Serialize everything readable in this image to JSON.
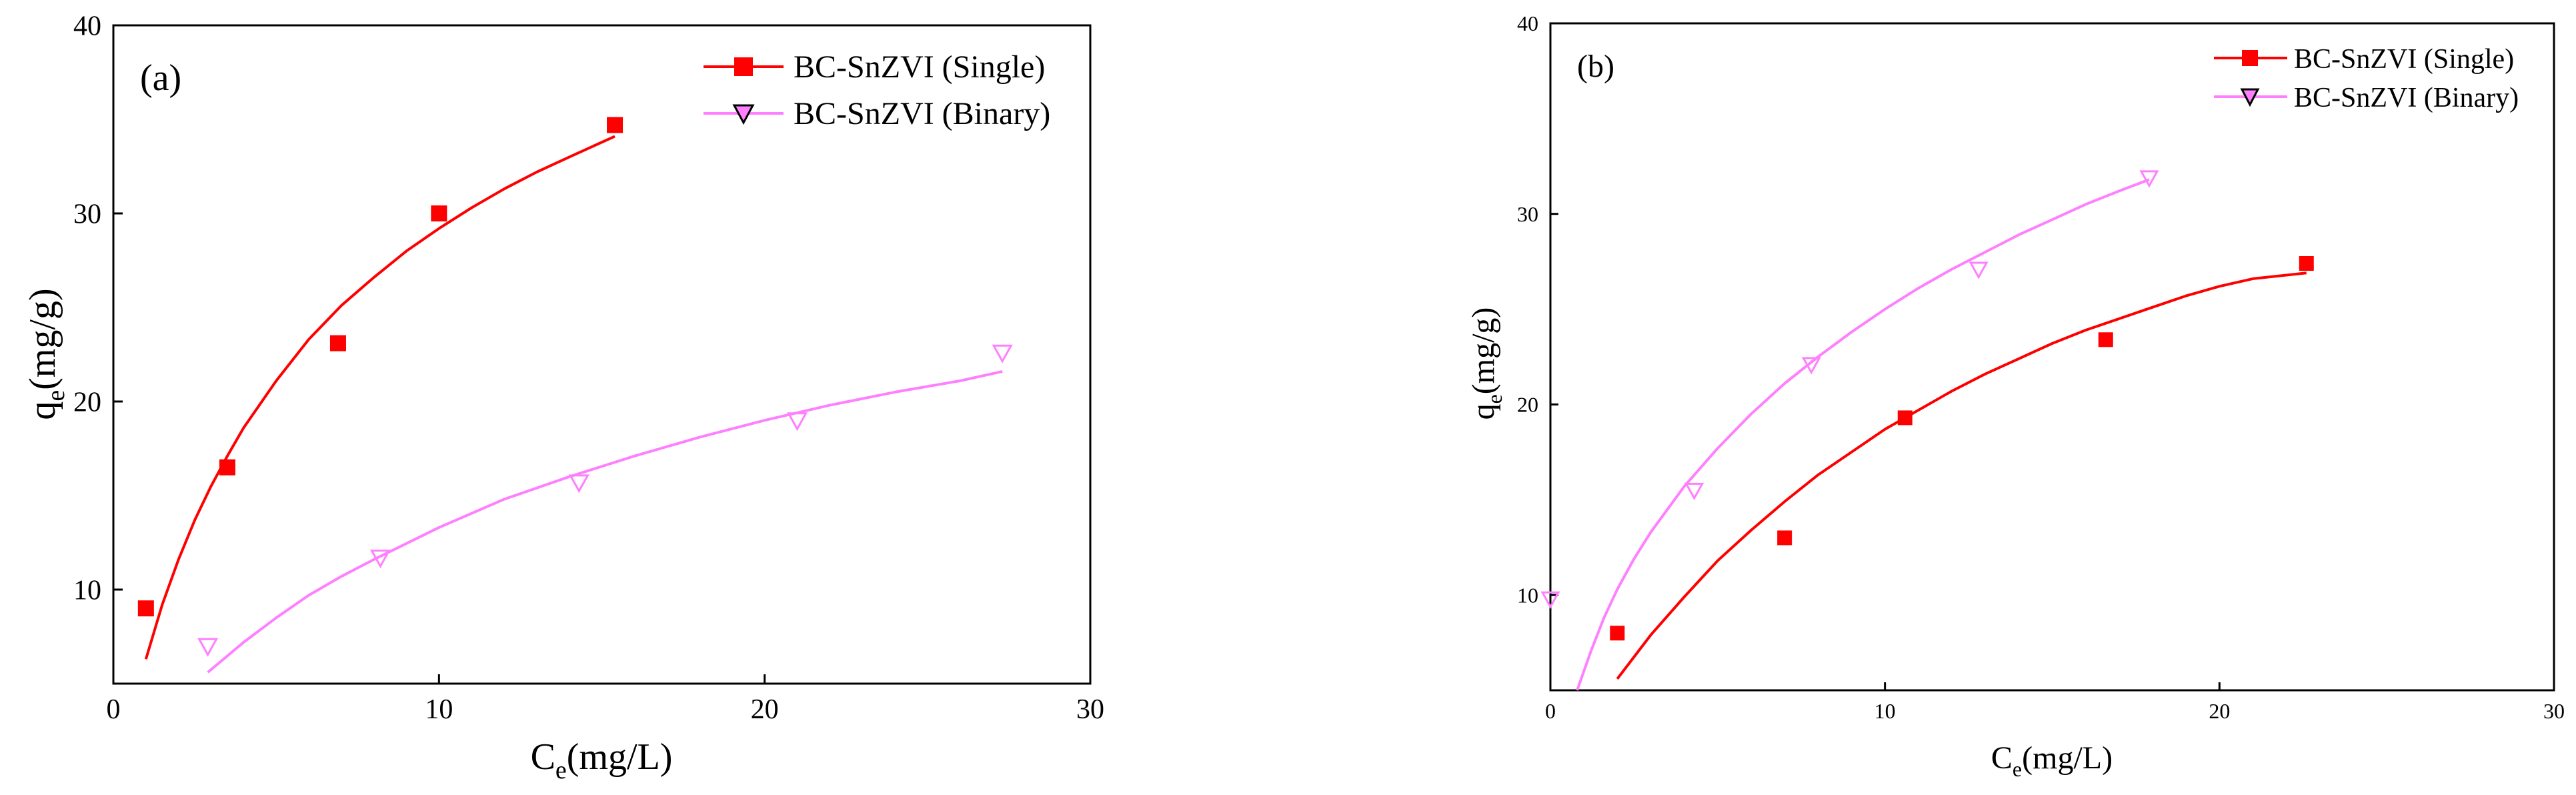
{
  "chart_data": [
    {
      "type": "scatter",
      "panel_label": "(a)",
      "xlabel": "C",
      "xlabel_sub": "e",
      "xlabel_unit": "(mg/L)",
      "ylabel": "q",
      "ylabel_sub": "e",
      "ylabel_unit": "(mg/g)",
      "xlim": [
        0,
        30
      ],
      "ylim": [
        5,
        40
      ],
      "xticks": [
        0,
        10,
        20,
        30
      ],
      "yticks": [
        10,
        20,
        30,
        40
      ],
      "legend_position": "top-right",
      "series": [
        {
          "name": "BC-SnZVI (Single)",
          "color": "#ff0000",
          "marker": "square",
          "x": [
            1.0,
            3.5,
            6.9,
            10.0,
            15.4
          ],
          "y": [
            9.0,
            16.5,
            23.1,
            30.0,
            34.7
          ],
          "fit_x": [
            1.0,
            1.5,
            2.0,
            2.5,
            3.0,
            3.5,
            4.0,
            5.0,
            6.0,
            7.0,
            8.0,
            9.0,
            10.0,
            11.0,
            12.0,
            13.0,
            14.0,
            15.4
          ],
          "fit_y": [
            6.3,
            9.2,
            11.6,
            13.7,
            15.5,
            17.1,
            18.6,
            21.1,
            23.3,
            25.1,
            26.6,
            28.0,
            29.2,
            30.3,
            31.3,
            32.2,
            33.0,
            34.1
          ]
        },
        {
          "name": "BC-SnZVI (Binary)",
          "color": "#ff80ff",
          "marker": "triangle-down",
          "x": [
            2.9,
            8.2,
            14.3,
            21.0,
            27.3
          ],
          "y": [
            7.0,
            11.7,
            15.7,
            19.0,
            22.6
          ],
          "fit_x": [
            2.9,
            4.0,
            5.0,
            6.0,
            7.0,
            8.0,
            10.0,
            12.0,
            14.0,
            16.0,
            18.0,
            20.0,
            22.0,
            24.0,
            26.0,
            27.3
          ],
          "fit_y": [
            5.6,
            7.2,
            8.5,
            9.7,
            10.7,
            11.6,
            13.3,
            14.8,
            16.0,
            17.1,
            18.1,
            19.0,
            19.8,
            20.5,
            21.1,
            21.6
          ]
        }
      ]
    },
    {
      "type": "scatter",
      "panel_label": "(b)",
      "xlabel": "C",
      "xlabel_sub": "e",
      "xlabel_unit": "(mg/L)",
      "ylabel": "q",
      "ylabel_sub": "e",
      "ylabel_unit": "(mg/g)",
      "xlim": [
        0,
        30
      ],
      "ylim": [
        5,
        40
      ],
      "xticks": [
        0,
        10,
        20,
        30
      ],
      "yticks": [
        10,
        20,
        30,
        40
      ],
      "legend_position": "top-right",
      "series": [
        {
          "name": "BC-SnZVI (Single)",
          "color": "#ff0000",
          "marker": "square",
          "x": [
            2.0,
            7.0,
            10.6,
            16.6,
            22.6
          ],
          "y": [
            8.0,
            13.0,
            19.3,
            23.4,
            27.4
          ],
          "fit_x": [
            2.0,
            3.0,
            4.0,
            5.0,
            6.0,
            7.0,
            8.0,
            9.0,
            10.0,
            11.0,
            12.0,
            13.0,
            14.0,
            15.0,
            16.0,
            17.0,
            18.0,
            19.0,
            20.0,
            21.0,
            22.6
          ],
          "fit_y": [
            5.6,
            7.9,
            9.9,
            11.8,
            13.4,
            14.9,
            16.3,
            17.5,
            18.7,
            19.7,
            20.7,
            21.6,
            22.4,
            23.2,
            23.9,
            24.5,
            25.1,
            25.7,
            26.2,
            26.6,
            26.9
          ]
        },
        {
          "name": "BC-SnZVI (Binary)",
          "color": "#ff80ff",
          "marker": "triangle-down",
          "x": [
            0.0,
            4.3,
            7.8,
            12.8,
            17.9
          ],
          "y": [
            9.8,
            15.5,
            22.1,
            27.1,
            31.9
          ],
          "fit_x": [
            0.8,
            1.2,
            1.6,
            2.0,
            2.5,
            3.0,
            4.0,
            5.0,
            6.0,
            7.0,
            8.0,
            9.0,
            10.0,
            11.0,
            12.0,
            13.0,
            14.0,
            15.0,
            16.0,
            17.0,
            17.9
          ],
          "fit_y": [
            5.0,
            7.0,
            8.8,
            10.3,
            11.9,
            13.3,
            15.7,
            17.7,
            19.5,
            21.1,
            22.5,
            23.8,
            25.0,
            26.1,
            27.1,
            28.0,
            28.9,
            29.7,
            30.5,
            31.2,
            31.8
          ]
        }
      ]
    }
  ]
}
